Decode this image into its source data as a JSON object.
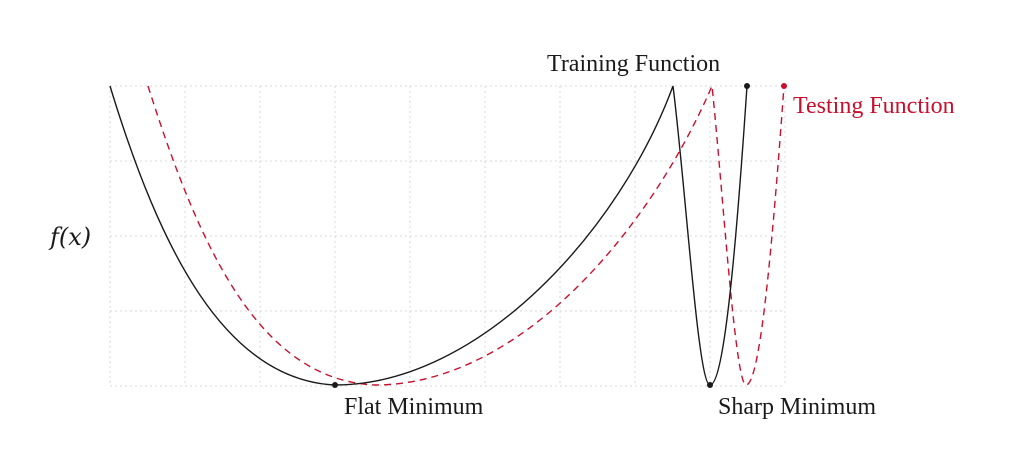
{
  "diagram": {
    "y_axis_label": "f(x)",
    "training": {
      "label": "Training Function",
      "color": "#1a1a1a",
      "line_style": "solid"
    },
    "testing": {
      "label": "Testing Function",
      "color": "#c8102e",
      "line_style": "dashed"
    },
    "flat_minimum_label": "Flat Minimum",
    "sharp_minimum_label": "Sharp Minimum",
    "grid": "dotted"
  }
}
